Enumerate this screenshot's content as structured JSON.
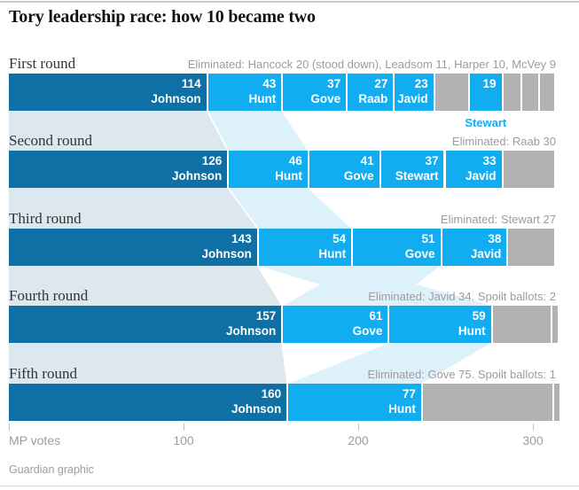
{
  "title": "Tory leadership race: how 10 became two",
  "footer": {
    "credit": "Guardian graphic"
  },
  "axis": {
    "label": "MP votes",
    "ticks": [
      0,
      100,
      200,
      300
    ]
  },
  "colors": {
    "leader_bar": "#0e70a4",
    "candidate_bar": "#12adf0",
    "eliminated_bar": "#b2b2b2",
    "flow_leader": "#dce7ee",
    "flow_candidate": "#ddf1fb",
    "bar_text": "#ffffff",
    "muted_text": "#9c9c9c",
    "round_label_text": "#333333",
    "title_text": "#121212",
    "annotation_text": "#12adf0"
  },
  "chart_data": {
    "type": "bar",
    "subtype": "horizontal-stacked-rounds-with-flows",
    "unit": "MP votes",
    "leader": "Johnson",
    "total_mps_per_round": 313,
    "xlim": [
      0,
      326
    ],
    "rounds": [
      {
        "name": "First round",
        "note": "Eliminated: Hancock 20 (stood down), Leadsom 11, Harper 10, McVey 9",
        "segments": [
          {
            "label": "Johnson",
            "value": 114,
            "kind": "leader"
          },
          {
            "label": "Hunt",
            "value": 43,
            "kind": "candidate"
          },
          {
            "label": "Gove",
            "value": 37,
            "kind": "candidate"
          },
          {
            "label": "Raab",
            "value": 27,
            "kind": "candidate"
          },
          {
            "label": "Javid",
            "value": 23,
            "kind": "candidate"
          },
          {
            "label": "Hancock",
            "value": 20,
            "kind": "eliminated"
          },
          {
            "label": "Stewart",
            "value": 19,
            "kind": "candidate",
            "label_below": true
          },
          {
            "label": "Leadsom",
            "value": 11,
            "kind": "eliminated"
          },
          {
            "label": "Harper",
            "value": 10,
            "kind": "eliminated"
          },
          {
            "label": "McVey",
            "value": 9,
            "kind": "eliminated"
          }
        ]
      },
      {
        "name": "Second round",
        "note": "Eliminated: Raab 30",
        "segments": [
          {
            "label": "Johnson",
            "value": 126,
            "kind": "leader"
          },
          {
            "label": "Hunt",
            "value": 46,
            "kind": "candidate"
          },
          {
            "label": "Gove",
            "value": 41,
            "kind": "candidate"
          },
          {
            "label": "Stewart",
            "value": 37,
            "kind": "candidate"
          },
          {
            "label": "Javid",
            "value": 33,
            "kind": "candidate"
          },
          {
            "label": "Raab",
            "value": 30,
            "kind": "eliminated"
          }
        ]
      },
      {
        "name": "Third round",
        "note": "Eliminated: Stewart 27",
        "segments": [
          {
            "label": "Johnson",
            "value": 143,
            "kind": "leader"
          },
          {
            "label": "Hunt",
            "value": 54,
            "kind": "candidate"
          },
          {
            "label": "Gove",
            "value": 51,
            "kind": "candidate"
          },
          {
            "label": "Javid",
            "value": 38,
            "kind": "candidate"
          },
          {
            "label": "Stewart",
            "value": 27,
            "kind": "eliminated"
          }
        ]
      },
      {
        "name": "Fourth round",
        "note": "Eliminated: Javid 34. Spoilt ballots: 2",
        "segments": [
          {
            "label": "Johnson",
            "value": 157,
            "kind": "leader"
          },
          {
            "label": "Gove",
            "value": 61,
            "kind": "candidate"
          },
          {
            "label": "Hunt",
            "value": 59,
            "kind": "candidate"
          },
          {
            "label": "Javid",
            "value": 34,
            "kind": "eliminated"
          },
          {
            "label": "Spoilt ballots",
            "value": 2,
            "kind": "eliminated"
          }
        ]
      },
      {
        "name": "Fifth round",
        "note": "Eliminated: Gove 75. Spoilt ballots: 1",
        "segments": [
          {
            "label": "Johnson",
            "value": 160,
            "kind": "leader"
          },
          {
            "label": "Hunt",
            "value": 77,
            "kind": "candidate"
          },
          {
            "label": "Gove",
            "value": 75,
            "kind": "eliminated"
          },
          {
            "label": "Spoilt ballots",
            "value": 1,
            "kind": "eliminated"
          }
        ]
      }
    ],
    "flows": [
      {
        "from": 0,
        "to": 1,
        "candidates": [
          "Johnson",
          "Hunt"
        ]
      },
      {
        "from": 1,
        "to": 2,
        "candidates": [
          "Johnson",
          "Hunt"
        ]
      },
      {
        "from": 2,
        "to": 3,
        "candidates": [
          "Johnson",
          "Hunt",
          "Gove"
        ]
      },
      {
        "from": 3,
        "to": 4,
        "candidates": [
          "Johnson",
          "Hunt"
        ]
      }
    ]
  }
}
